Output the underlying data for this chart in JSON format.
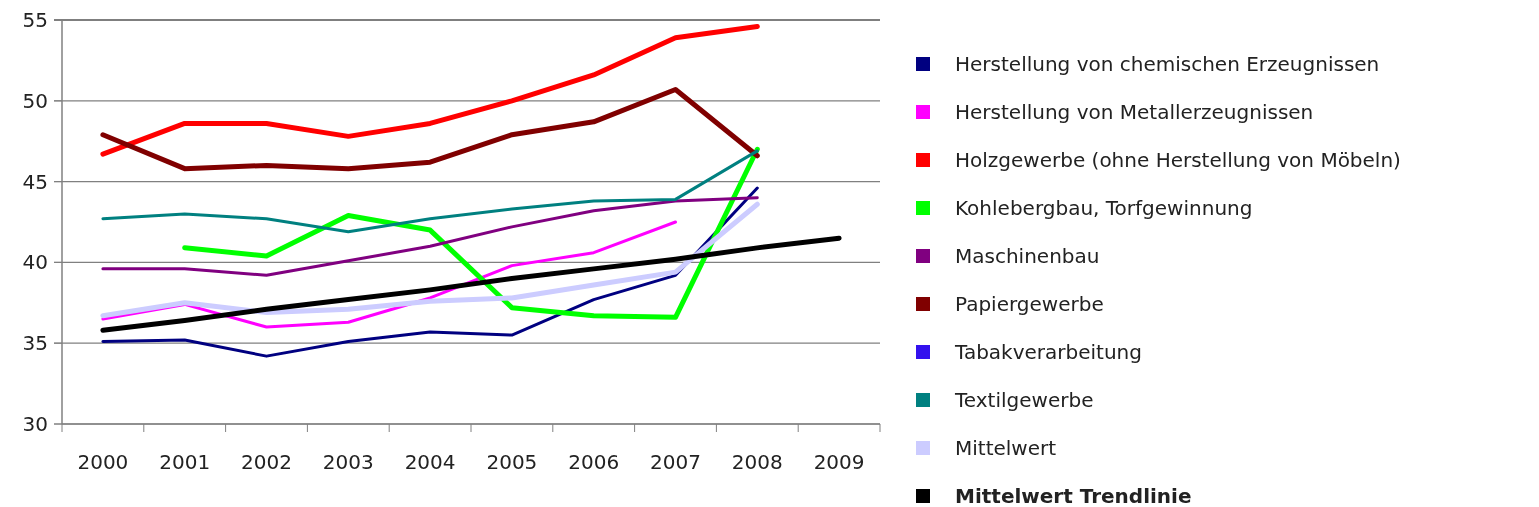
{
  "chart_data": {
    "type": "line",
    "categories": [
      "2000",
      "2001",
      "2002",
      "2003",
      "2004",
      "2005",
      "2006",
      "2007",
      "2008",
      "2009"
    ],
    "ylim": [
      30,
      55
    ],
    "yticks": [
      30,
      35,
      40,
      45,
      50,
      55
    ],
    "grid": "y",
    "legend": "right",
    "marker": "none",
    "line_style": "solid",
    "series": [
      {
        "name": "Herstellung von chemischen Erzeugnissen",
        "color": "#000080",
        "values": [
          35.1,
          35.2,
          34.2,
          35.1,
          35.7,
          35.5,
          37.7,
          39.2,
          44.6,
          null
        ]
      },
      {
        "name": "Herstellung von Metallerzeugnissen",
        "color": "#ff00ff",
        "values": [
          36.5,
          37.4,
          36.0,
          36.3,
          37.8,
          39.8,
          40.6,
          42.5,
          null,
          null
        ]
      },
      {
        "name": "Holzgewerbe (ohne Herstellung von Möbeln)",
        "color": "#ff0000",
        "values": [
          46.7,
          48.6,
          48.6,
          47.8,
          48.6,
          50.0,
          51.6,
          53.9,
          54.6,
          null
        ]
      },
      {
        "name": "Kohlebergbau, Torfgewinnung",
        "color": "#00ff00",
        "values": [
          null,
          40.9,
          40.4,
          42.9,
          42.0,
          37.2,
          36.7,
          36.6,
          47.0,
          null
        ]
      },
      {
        "name": "Maschinenbau",
        "color": "#800080",
        "values": [
          39.6,
          39.6,
          39.2,
          40.1,
          41.0,
          42.2,
          43.2,
          43.8,
          44.0,
          null
        ]
      },
      {
        "name": "Papiergewerbe",
        "color": "#800000",
        "values": [
          47.9,
          45.8,
          46.0,
          45.8,
          46.2,
          47.9,
          48.7,
          50.7,
          46.6,
          null
        ]
      },
      {
        "name": "Tabakverarbeitung",
        "color": "#3311ee",
        "values": [
          null,
          null,
          null,
          null,
          null,
          null,
          null,
          null,
          null,
          null
        ]
      },
      {
        "name": "Textilgewerbe",
        "color": "#008080",
        "values": [
          42.7,
          43.0,
          42.7,
          41.9,
          42.7,
          43.3,
          43.8,
          43.9,
          46.9,
          null
        ]
      },
      {
        "name": "Mittelwert",
        "color": "#ccccff",
        "values": [
          36.7,
          37.5,
          36.9,
          37.1,
          37.6,
          37.8,
          38.6,
          39.4,
          43.6,
          null
        ]
      },
      {
        "name": "Mittelwert Trendlinie",
        "color": "#000000",
        "values": [
          35.8,
          36.4,
          37.1,
          37.7,
          38.3,
          39.0,
          39.6,
          40.2,
          40.9,
          41.5
        ]
      }
    ]
  }
}
